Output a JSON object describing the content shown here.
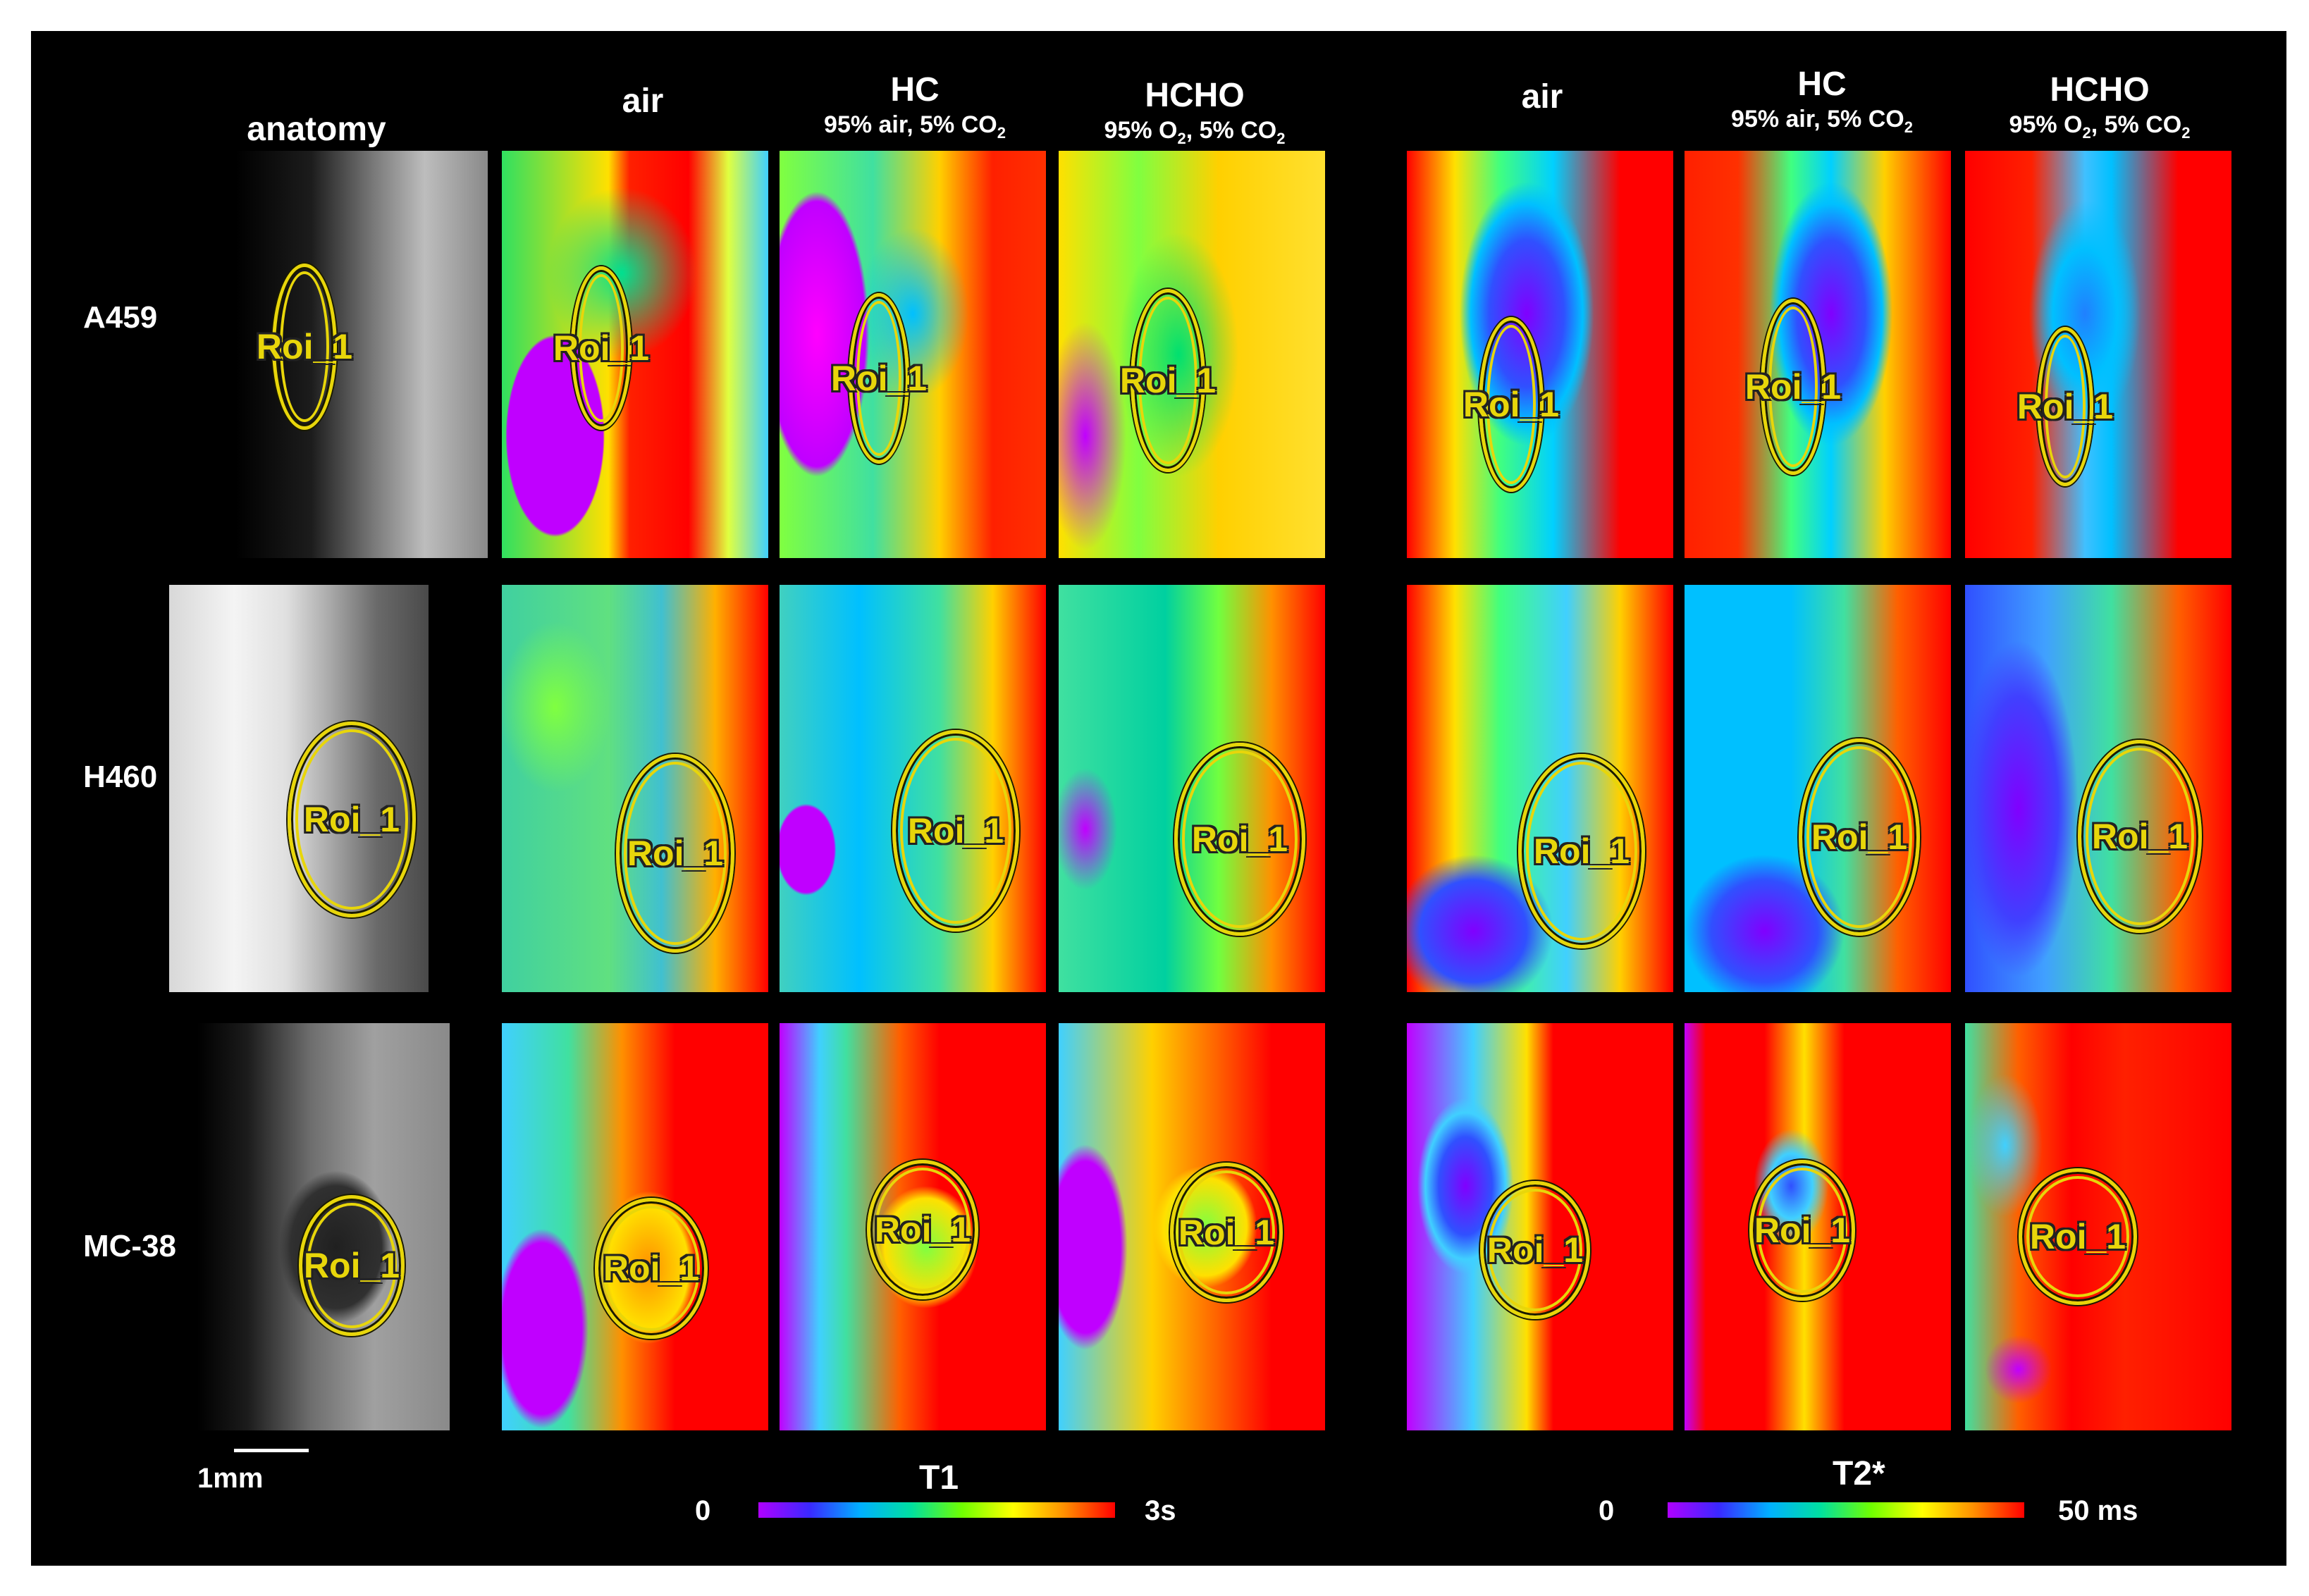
{
  "column_headers": {
    "anatomy": "anatomy",
    "t1": [
      {
        "title": "air",
        "sub": ""
      },
      {
        "title": "HC",
        "sub": "95% air, 5% CO",
        "sub_sub": "2"
      },
      {
        "title": "HCHO",
        "sub": "95% O",
        "sub_mid": "2",
        "sub_end": ", 5% CO",
        "sub_sub": "2"
      }
    ],
    "t2": [
      {
        "title": "air",
        "sub": ""
      },
      {
        "title": "HC",
        "sub": "95% air, 5% CO",
        "sub_sub": "2"
      },
      {
        "title": "HCHO",
        "sub": "95% O",
        "sub_mid": "2",
        "sub_end": ", 5% CO",
        "sub_sub": "2"
      }
    ]
  },
  "rows": [
    "A459",
    "H460",
    "MC-38"
  ],
  "roi_label": "Roi_1",
  "scale_bar": {
    "label": "1mm"
  },
  "colorbars": {
    "t1": {
      "title": "T1",
      "min": "0",
      "max": "3s"
    },
    "t2": {
      "title": "T2*",
      "min": "0",
      "max": "50 ms"
    }
  },
  "colors": {
    "roi": "#e8d60a",
    "background": "#000000",
    "text": "#ffffff"
  }
}
